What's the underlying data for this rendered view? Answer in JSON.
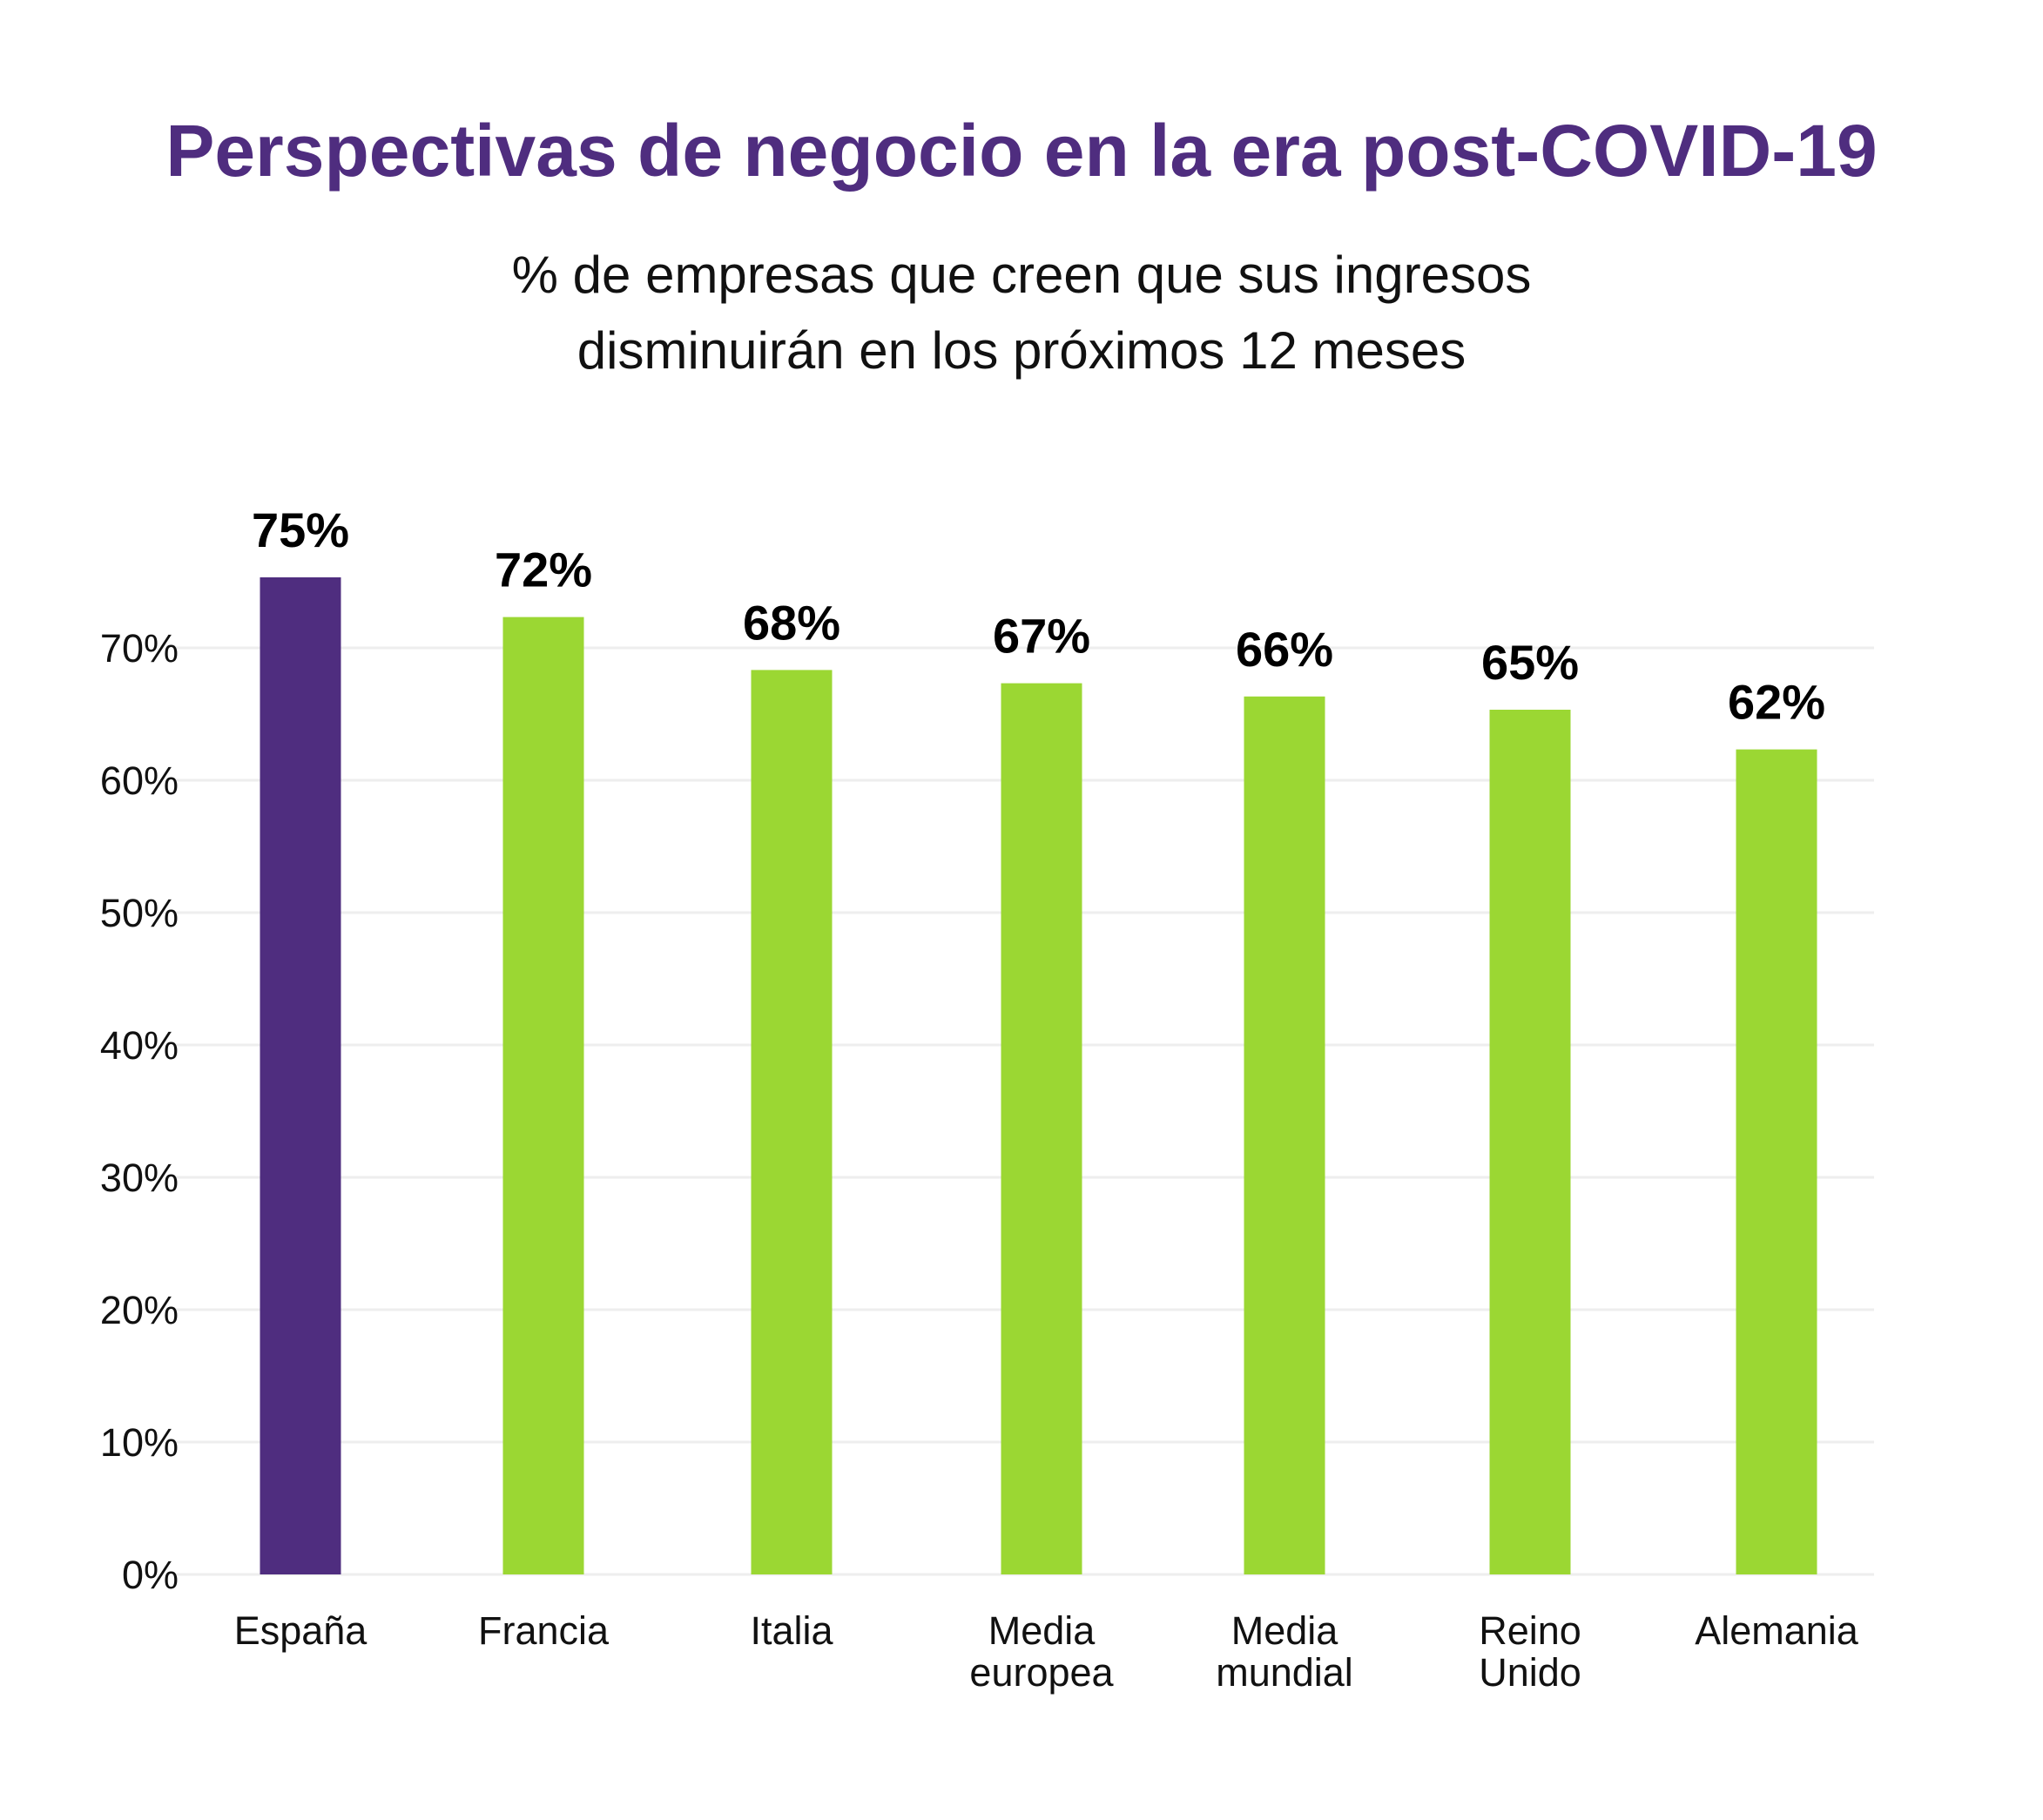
{
  "chart_data": {
    "type": "bar",
    "title": "Perspectivas de negocio en la era post-COVID-19",
    "subtitle": [
      "% de empresas que creen que sus ingresos",
      "disminuirán en los próximos 12 meses"
    ],
    "categories": [
      [
        "España"
      ],
      [
        "Francia"
      ],
      [
        "Italia"
      ],
      [
        "Media",
        "europea"
      ],
      [
        "Media",
        "mundial"
      ],
      [
        "Reino",
        "Unido"
      ],
      [
        "Alemania"
      ]
    ],
    "values": [
      75,
      72,
      68,
      67,
      66,
      65,
      62
    ],
    "data_labels": [
      "75%",
      "72%",
      "68%",
      "67%",
      "66%",
      "65%",
      "62%"
    ],
    "highlight_index": 0,
    "colors": {
      "highlight": "#4f2d7f",
      "default": "#9bd733",
      "title": "#4f2d7f",
      "grid": "#eeeeee"
    },
    "ylim": [
      0,
      75
    ],
    "yticks": [
      0,
      10,
      20,
      30,
      40,
      50,
      60,
      70
    ],
    "ytick_labels": [
      "0%",
      "10%",
      "20%",
      "30%",
      "40%",
      "50%",
      "60%",
      "70%"
    ],
    "xlabel": "",
    "ylabel": "",
    "grid": true,
    "legend": "none"
  }
}
